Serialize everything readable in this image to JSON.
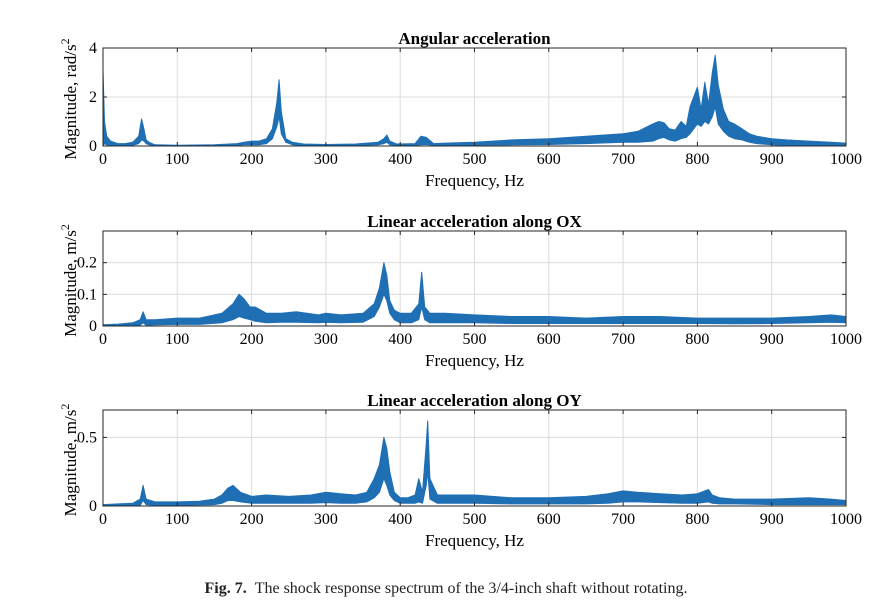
{
  "figure": {
    "caption_label": "Fig. 7.",
    "caption_text": "The shock response spectrum of the 3/4-inch shaft without rotating.",
    "line_color": "#1f6fb5"
  },
  "chart_data": [
    {
      "type": "area",
      "title": "Angular acceleration",
      "xlabel": "Frequency, Hz",
      "ylabel": "Magnitude, rad/s",
      "ylabel_sup": "2",
      "xlim": [
        0,
        1000
      ],
      "ylim": [
        0,
        4
      ],
      "xticks": [
        0,
        100,
        200,
        300,
        400,
        500,
        600,
        700,
        800,
        900,
        1000
      ],
      "yticks": [
        0,
        2,
        4
      ],
      "ytick_labels": [
        "0",
        "2",
        "4"
      ],
      "grid": true,
      "series": [
        {
          "x": [
            0,
            2,
            5,
            10,
            20,
            30,
            40,
            48,
            52,
            55,
            58,
            62,
            70,
            100,
            150,
            180,
            190,
            200,
            210,
            220,
            228,
            234,
            237,
            240,
            246,
            255,
            270,
            300,
            340,
            370,
            378,
            382,
            386,
            395,
            420,
            428,
            435,
            445,
            460,
            500,
            550,
            600,
            650,
            700,
            720,
            740,
            748,
            755,
            762,
            770,
            778,
            785,
            790,
            795,
            800,
            805,
            810,
            815,
            820,
            824,
            828,
            835,
            842,
            850,
            860,
            870,
            880,
            900,
            920,
            950,
            980,
            1000
          ],
          "lower": [
            0,
            0.1,
            0.05,
            0.02,
            0.02,
            0.02,
            0.03,
            0.1,
            0.25,
            0.2,
            0.1,
            0.05,
            0.02,
            0.02,
            0.02,
            0.03,
            0.05,
            0.05,
            0.05,
            0.1,
            0.3,
            0.8,
            1.2,
            0.5,
            0.15,
            0.05,
            0.02,
            0.02,
            0.03,
            0.05,
            0.1,
            0.15,
            0.05,
            0.03,
            0.03,
            0.05,
            0.06,
            0.03,
            0.03,
            0.04,
            0.05,
            0.06,
            0.1,
            0.15,
            0.15,
            0.2,
            0.3,
            0.35,
            0.25,
            0.2,
            0.3,
            0.35,
            0.5,
            0.7,
            0.9,
            0.8,
            1.0,
            0.9,
            1.2,
            1.6,
            0.9,
            0.6,
            0.4,
            0.3,
            0.25,
            0.15,
            0.1,
            0.05,
            0.03,
            0.02,
            0.02,
            0.02
          ],
          "upper": [
            3.1,
            1.0,
            0.4,
            0.2,
            0.1,
            0.1,
            0.15,
            0.4,
            1.1,
            0.7,
            0.25,
            0.15,
            0.05,
            0.03,
            0.05,
            0.1,
            0.15,
            0.2,
            0.2,
            0.3,
            0.7,
            1.8,
            2.7,
            1.4,
            0.3,
            0.15,
            0.08,
            0.06,
            0.08,
            0.15,
            0.3,
            0.45,
            0.2,
            0.08,
            0.1,
            0.4,
            0.35,
            0.1,
            0.12,
            0.15,
            0.25,
            0.3,
            0.4,
            0.5,
            0.6,
            0.9,
            1.0,
            0.95,
            0.7,
            0.65,
            1.0,
            0.8,
            1.6,
            2.0,
            2.4,
            1.5,
            2.6,
            1.7,
            3.0,
            3.7,
            2.5,
            1.5,
            1.0,
            0.9,
            0.7,
            0.5,
            0.4,
            0.3,
            0.25,
            0.2,
            0.15,
            0.12
          ]
        }
      ]
    },
    {
      "type": "area",
      "title": "Linear acceleration along OX",
      "xlabel": "Frequency, Hz",
      "ylabel": "Magnitude, m/s",
      "ylabel_sup": "2",
      "xlim": [
        0,
        1000
      ],
      "ylim": [
        0,
        0.3
      ],
      "xticks": [
        0,
        100,
        200,
        300,
        400,
        500,
        600,
        700,
        800,
        900,
        1000
      ],
      "yticks": [
        0,
        0.1,
        0.2
      ],
      "ytick_labels": [
        "0",
        "0.1",
        "0.2"
      ],
      "grid": true,
      "series": [
        {
          "x": [
            0,
            20,
            40,
            50,
            54,
            58,
            70,
            100,
            130,
            160,
            175,
            183,
            190,
            198,
            205,
            220,
            240,
            260,
            290,
            300,
            320,
            350,
            365,
            372,
            378,
            382,
            386,
            392,
            400,
            415,
            425,
            429,
            433,
            440,
            460,
            500,
            550,
            600,
            650,
            700,
            750,
            800,
            850,
            900,
            950,
            980,
            1000
          ],
          "lower": [
            0,
            0,
            0.002,
            0.003,
            0.01,
            0.003,
            0.004,
            0.005,
            0.005,
            0.01,
            0.02,
            0.03,
            0.025,
            0.02,
            0.015,
            0.01,
            0.012,
            0.012,
            0.01,
            0.012,
            0.01,
            0.012,
            0.03,
            0.06,
            0.1,
            0.08,
            0.04,
            0.02,
            0.01,
            0.01,
            0.02,
            0.06,
            0.02,
            0.01,
            0.01,
            0.01,
            0.008,
            0.008,
            0.008,
            0.008,
            0.008,
            0.008,
            0.007,
            0.008,
            0.01,
            0.012,
            0.01
          ],
          "upper": [
            0.004,
            0.006,
            0.01,
            0.02,
            0.045,
            0.02,
            0.02,
            0.025,
            0.025,
            0.04,
            0.07,
            0.1,
            0.085,
            0.06,
            0.06,
            0.04,
            0.04,
            0.045,
            0.035,
            0.04,
            0.035,
            0.04,
            0.07,
            0.12,
            0.2,
            0.16,
            0.08,
            0.05,
            0.04,
            0.04,
            0.07,
            0.17,
            0.06,
            0.04,
            0.04,
            0.035,
            0.03,
            0.03,
            0.025,
            0.03,
            0.03,
            0.025,
            0.025,
            0.025,
            0.03,
            0.035,
            0.03
          ]
        }
      ]
    },
    {
      "type": "area",
      "title": "Linear acceleration along OY",
      "xlabel": "Frequency, Hz",
      "ylabel": "Magnitude, m/s",
      "ylabel_sup": "2",
      "xlim": [
        0,
        1000
      ],
      "ylim": [
        0,
        0.7
      ],
      "xticks": [
        0,
        100,
        200,
        300,
        400,
        500,
        600,
        700,
        800,
        900,
        1000
      ],
      "yticks": [
        0,
        0.5
      ],
      "ytick_labels": [
        "0",
        "0.5"
      ],
      "grid": true,
      "series": [
        {
          "x": [
            0,
            20,
            40,
            50,
            54,
            58,
            70,
            100,
            130,
            150,
            160,
            168,
            175,
            185,
            200,
            220,
            250,
            280,
            300,
            320,
            340,
            355,
            365,
            372,
            378,
            382,
            386,
            392,
            400,
            410,
            420,
            425,
            430,
            435,
            437,
            440,
            450,
            470,
            500,
            550,
            600,
            650,
            680,
            700,
            720,
            750,
            780,
            800,
            815,
            820,
            830,
            850,
            900,
            950,
            980,
            1000
          ],
          "lower": [
            0,
            0,
            0.003,
            0.005,
            0.04,
            0.01,
            0.005,
            0.005,
            0.008,
            0.01,
            0.02,
            0.04,
            0.04,
            0.03,
            0.02,
            0.02,
            0.02,
            0.02,
            0.025,
            0.02,
            0.02,
            0.03,
            0.06,
            0.1,
            0.2,
            0.15,
            0.08,
            0.04,
            0.02,
            0.02,
            0.02,
            0.03,
            0.02,
            0.15,
            0.25,
            0.05,
            0.02,
            0.02,
            0.02,
            0.015,
            0.015,
            0.015,
            0.02,
            0.03,
            0.03,
            0.025,
            0.02,
            0.02,
            0.03,
            0.02,
            0.015,
            0.015,
            0.01,
            0.01,
            0.01,
            0.01
          ],
          "upper": [
            0.01,
            0.015,
            0.02,
            0.05,
            0.15,
            0.05,
            0.03,
            0.03,
            0.035,
            0.05,
            0.08,
            0.13,
            0.15,
            0.1,
            0.07,
            0.08,
            0.07,
            0.08,
            0.1,
            0.09,
            0.08,
            0.1,
            0.2,
            0.3,
            0.5,
            0.42,
            0.25,
            0.1,
            0.06,
            0.06,
            0.08,
            0.2,
            0.1,
            0.45,
            0.62,
            0.2,
            0.08,
            0.08,
            0.08,
            0.06,
            0.06,
            0.07,
            0.09,
            0.11,
            0.1,
            0.09,
            0.08,
            0.09,
            0.12,
            0.08,
            0.06,
            0.05,
            0.05,
            0.06,
            0.05,
            0.04
          ]
        }
      ]
    }
  ]
}
